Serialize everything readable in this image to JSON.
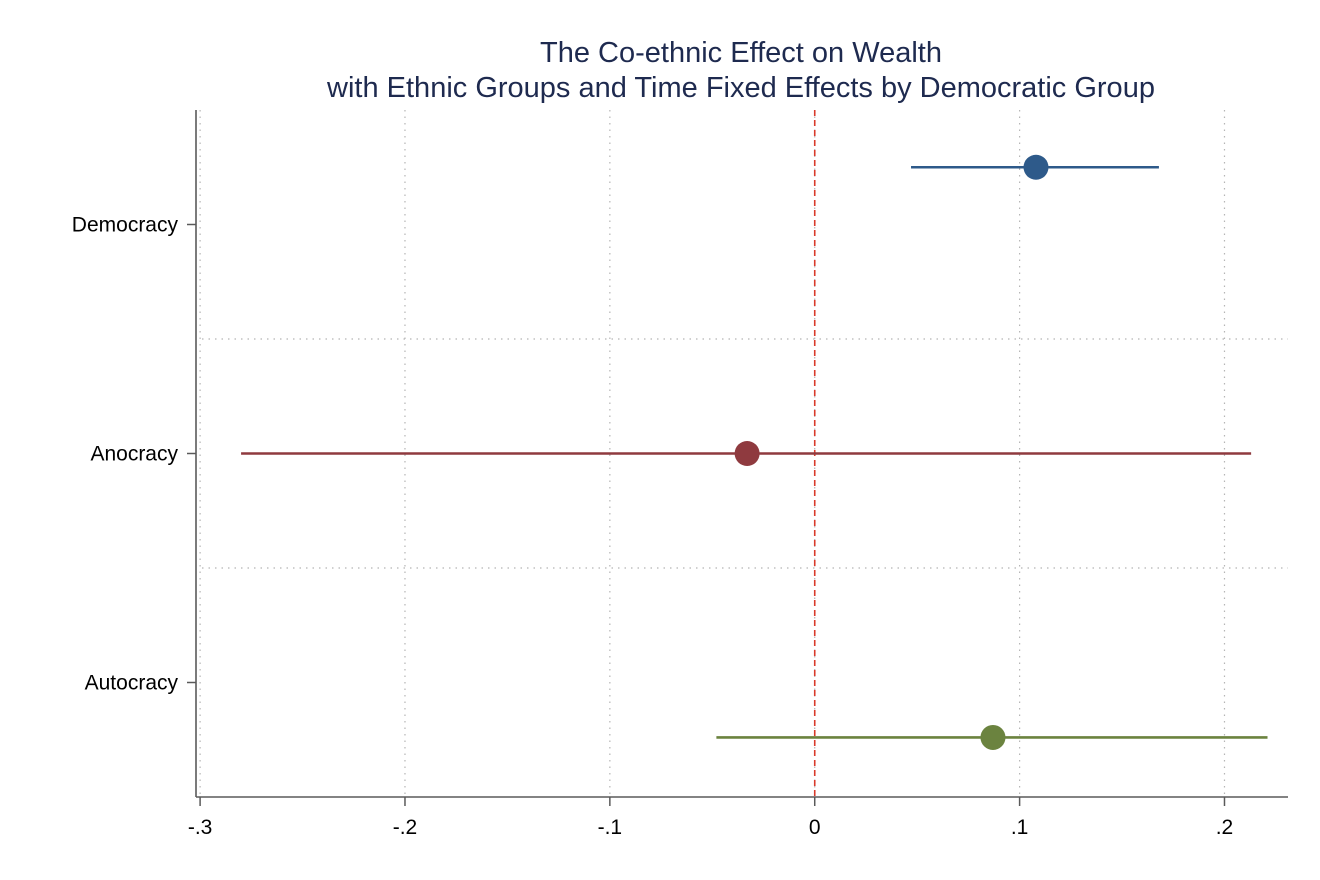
{
  "chart_data": {
    "type": "scatter",
    "title": "The Co-ethnic Effect on Wealth",
    "subtitle": "with Ethnic Groups and Time Fixed Effects by Democratic Group",
    "xlabel": "",
    "ylabel": "",
    "xlim": [
      -0.302,
      0.231
    ],
    "x_ticks": [
      {
        "value": -0.3,
        "label": "-.3"
      },
      {
        "value": -0.2,
        "label": "-.2"
      },
      {
        "value": -0.1,
        "label": "-.1"
      },
      {
        "value": 0,
        "label": "0"
      },
      {
        "value": 0.1,
        "label": ".1"
      },
      {
        "value": 0.2,
        "label": ".2"
      }
    ],
    "groups": [
      "Democracy",
      "Anocracy",
      "Autocracy"
    ],
    "reference_line": {
      "x": 0,
      "color": "#d93a2b",
      "style": "dashed"
    },
    "grid": true,
    "series": [
      {
        "group": "Democracy",
        "estimate": 0.108,
        "ci_low": 0.047,
        "ci_high": 0.168,
        "row_offset": -0.25,
        "color": "#2e5a8a"
      },
      {
        "group": "Anocracy",
        "estimate": -0.033,
        "ci_low": -0.28,
        "ci_high": 0.213,
        "row_offset": 0.0,
        "color": "#8f3a3f"
      },
      {
        "group": "Autocracy",
        "estimate": 0.087,
        "ci_low": -0.048,
        "ci_high": 0.221,
        "row_offset": 0.24,
        "color": "#6b833f"
      }
    ]
  }
}
